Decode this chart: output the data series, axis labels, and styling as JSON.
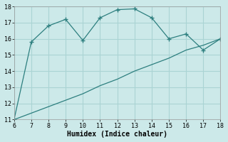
{
  "xlabel": "Humidex (Indice chaleur)",
  "ylabel": "",
  "background_color": "#cce9e9",
  "grid_color": "#aad4d4",
  "line_color": "#2d7f7f",
  "xlim": [
    6,
    18
  ],
  "ylim": [
    11,
    18
  ],
  "xticks": [
    6,
    7,
    8,
    9,
    10,
    11,
    12,
    13,
    14,
    15,
    16,
    17,
    18
  ],
  "yticks": [
    11,
    12,
    13,
    14,
    15,
    16,
    17,
    18
  ],
  "line1_x": [
    6,
    7,
    8,
    9,
    10,
    11,
    12,
    13,
    14,
    15,
    16,
    17,
    18
  ],
  "line1_y": [
    11.0,
    15.8,
    16.8,
    17.2,
    15.9,
    17.3,
    17.8,
    17.85,
    17.3,
    16.0,
    16.3,
    15.3,
    16.0
  ],
  "line2_x": [
    6,
    7,
    8,
    9,
    10,
    11,
    12,
    13,
    14,
    15,
    16,
    17,
    18
  ],
  "line2_y": [
    11.0,
    11.4,
    11.8,
    12.2,
    12.6,
    13.1,
    13.5,
    14.0,
    14.4,
    14.8,
    15.3,
    15.6,
    16.0
  ],
  "label_fontsize": 7,
  "tick_fontsize": 6
}
